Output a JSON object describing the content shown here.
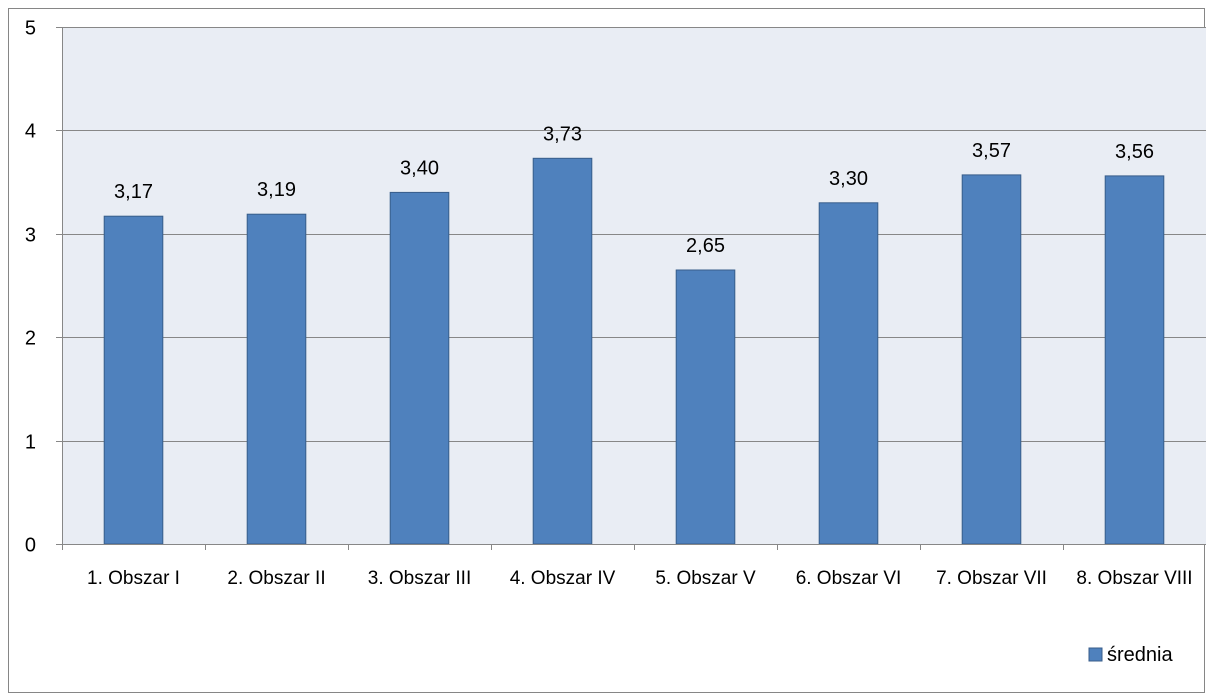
{
  "chart_data": {
    "type": "bar",
    "categories": [
      "1. Obszar I",
      "2. Obszar II",
      "3. Obszar III",
      "4. Obszar IV",
      "5. Obszar V",
      "6. Obszar VI",
      "7. Obszar VII",
      "8. Obszar VIII"
    ],
    "series": [
      {
        "name": "średnia",
        "values": [
          3.17,
          3.19,
          3.4,
          3.73,
          2.65,
          3.3,
          3.57,
          3.56
        ]
      }
    ],
    "data_labels": [
      "3,17",
      "3,19",
      "3,40",
      "3,73",
      "2,65",
      "3,30",
      "3,57",
      "3,56"
    ],
    "yticks": [
      "0",
      "1",
      "2",
      "3",
      "4",
      "5"
    ],
    "ylim": [
      0,
      5
    ],
    "grid": true,
    "legend_position": "bottom-right",
    "colors": {
      "bar": "#4f81bd",
      "bar_border": "#385d8a",
      "plot_bg": "#e9edf4",
      "gridline": "#878787"
    }
  }
}
